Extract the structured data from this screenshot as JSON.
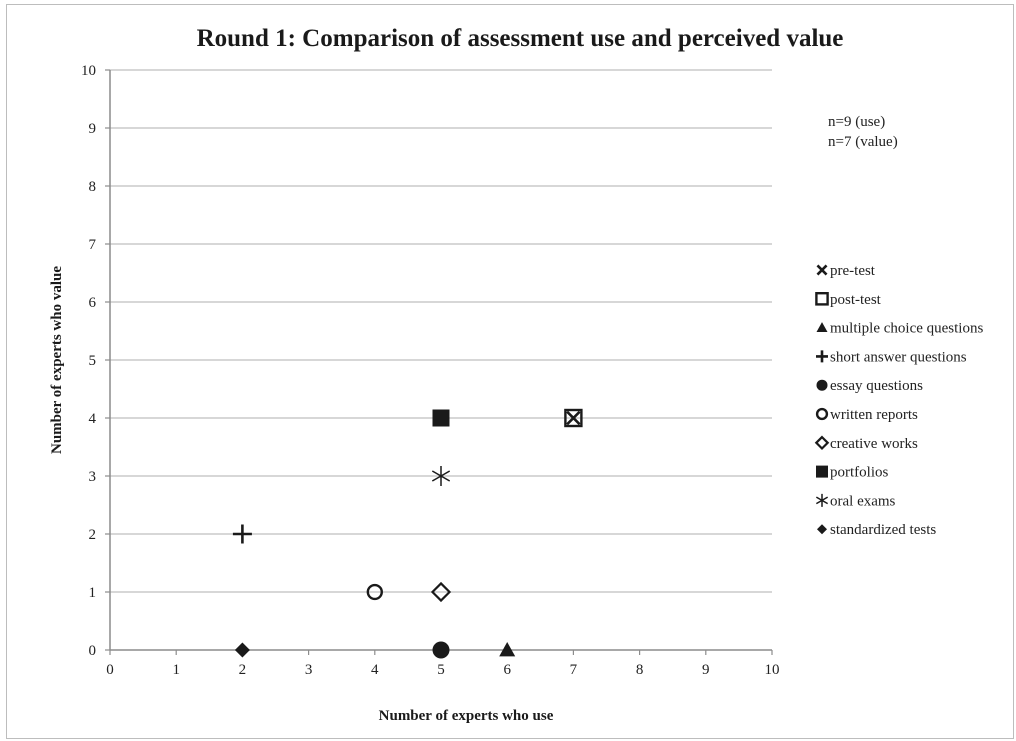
{
  "chart_data": {
    "type": "scatter",
    "title": "Round 1: Comparison of assessment use and perceived value",
    "xlabel": "Number of experts who use",
    "ylabel": "Number of experts who value",
    "xlim": [
      0,
      10
    ],
    "ylim": [
      0,
      10
    ],
    "x_ticks": [
      "0",
      "1",
      "2",
      "3",
      "4",
      "5",
      "6",
      "7",
      "8",
      "9",
      "10"
    ],
    "y_ticks": [
      "0",
      "1",
      "2",
      "3",
      "4",
      "5",
      "6",
      "7",
      "8",
      "9",
      "10"
    ],
    "grid": "horizontal",
    "legend_position": "right",
    "annotations": [
      "n=9 (use)",
      "n=7 (value)"
    ],
    "series": [
      {
        "name": "pre-test",
        "marker": "x",
        "points": [
          {
            "x": 7,
            "y": 4
          }
        ]
      },
      {
        "name": "post-test",
        "marker": "square-open",
        "points": [
          {
            "x": 7,
            "y": 4
          }
        ]
      },
      {
        "name": "multiple choice questions",
        "marker": "triangle",
        "points": [
          {
            "x": 6,
            "y": 0
          }
        ]
      },
      {
        "name": "short answer questions",
        "marker": "plus",
        "points": [
          {
            "x": 2,
            "y": 2
          }
        ]
      },
      {
        "name": "essay questions",
        "marker": "circle",
        "points": [
          {
            "x": 5,
            "y": 0
          }
        ]
      },
      {
        "name": "written reports",
        "marker": "circle-open",
        "points": [
          {
            "x": 4,
            "y": 1
          }
        ]
      },
      {
        "name": "creative works",
        "marker": "diamond-open",
        "points": [
          {
            "x": 5,
            "y": 1
          }
        ]
      },
      {
        "name": "portfolios",
        "marker": "square",
        "points": [
          {
            "x": 5,
            "y": 4
          }
        ]
      },
      {
        "name": "oral exams",
        "marker": "asterisk",
        "points": [
          {
            "x": 5,
            "y": 3
          }
        ]
      },
      {
        "name": "standardized tests",
        "marker": "diamond",
        "points": [
          {
            "x": 2,
            "y": 0
          }
        ]
      }
    ],
    "colors": {
      "marker": "#1a1a1a",
      "grid": "#bfbfbf",
      "axis": "#8c8c8c"
    }
  }
}
